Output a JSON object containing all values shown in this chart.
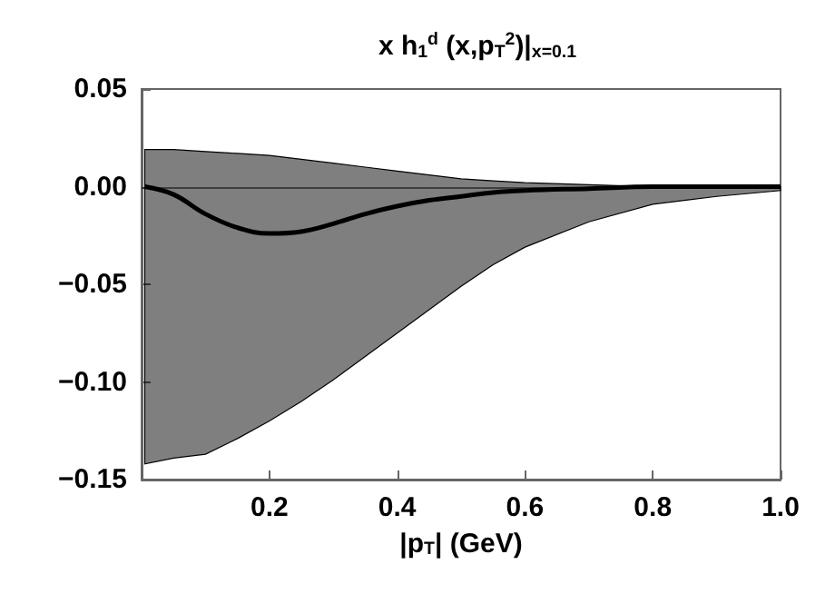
{
  "chart_data": {
    "type": "line",
    "title": "x h$_{1}$$^{d}$ (x,p$_{T}$$^{2}$)|$_{x=0.1}$",
    "xlabel": "|p$_{T}$| (GeV)",
    "x": [
      0.005,
      0.05,
      0.1,
      0.15,
      0.2,
      0.25,
      0.3,
      0.35,
      0.4,
      0.45,
      0.5,
      0.55,
      0.6,
      0.7,
      0.8,
      0.9,
      1.0
    ],
    "series": [
      {
        "color": "#000000",
        "values": [
          0,
          -0.004,
          -0.014,
          -0.021,
          -0.024,
          -0.023,
          -0.019,
          -0.014,
          -0.01,
          -0.007,
          -0.005,
          -0.003,
          -0.002,
          -0.001,
          0,
          0,
          0
        ],
        "upper": [
          0.019,
          0.019,
          0.018,
          0.017,
          0.016,
          0.014,
          0.012,
          0.01,
          0.008,
          0.006,
          0.004,
          0.003,
          0.002,
          0.001,
          0,
          0,
          0
        ],
        "lower": [
          -0.142,
          -0.139,
          -0.137,
          -0.129,
          -0.12,
          -0.11,
          -0.099,
          -0.087,
          -0.075,
          -0.063,
          -0.051,
          -0.04,
          -0.031,
          -0.018,
          -0.009,
          -0.005,
          -0.002
        ]
      }
    ],
    "xlim": [
      0,
      1
    ],
    "xticks": [
      0.2,
      0.4,
      0.6,
      0.8,
      {
        "value": 1,
        "label": "1.0"
      }
    ],
    "ylim": [
      -0.15,
      0.05
    ],
    "yticks": [
      {
        "value": 0.05,
        "label": "0.05"
      },
      {
        "value": 0,
        "label": "0.00"
      },
      {
        "value": -0.05,
        "label": "−0.05"
      },
      {
        "value": -0.1,
        "label": "−0.10"
      },
      {
        "value": -0.15,
        "label": "−0.15"
      }
    ],
    "ref_lines": [
      {
        "axis": "y",
        "value": 0,
        "color": "#000000"
      }
    ],
    "grid": false,
    "marker": "none",
    "line_style": "solid"
  }
}
